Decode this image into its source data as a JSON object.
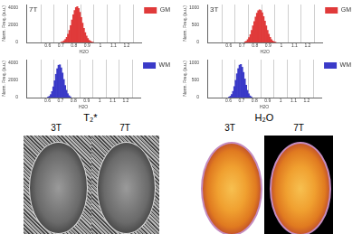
{
  "chart_data": [
    {
      "type": "histogram",
      "title": "7T",
      "x_label": "H2O",
      "y_label": "Norm. Freq. (a.u.)",
      "bins": [
        0.7,
        0.71,
        0.72,
        0.73,
        0.74,
        0.75,
        0.76,
        0.77,
        0.78,
        0.79,
        0.8,
        0.81,
        0.82,
        0.83,
        0.84,
        0.85,
        0.86,
        0.87,
        0.88,
        0.89,
        0.9,
        0.91,
        0.92,
        0.93,
        0.94,
        0.95
      ],
      "series": [
        {
          "name": "GM",
          "color": "#e03a3a",
          "values": [
            50,
            100,
            200,
            350,
            600,
            950,
            1400,
            1950,
            2600,
            3200,
            3700,
            4050,
            4150,
            3950,
            3500,
            2900,
            2250,
            1650,
            1150,
            750,
            450,
            260,
            140,
            70,
            30
          ]
        }
      ],
      "xlim": [
        0.5,
        1.25
      ],
      "xticks": [
        0.6,
        0.7,
        0.8,
        0.9,
        1,
        1.1,
        1.2
      ],
      "ylim": [
        0,
        4400
      ],
      "yticks": [
        0,
        2000,
        4000
      ],
      "grid": true,
      "legend": "upper right"
    },
    {
      "type": "histogram",
      "x_label": "H2O",
      "y_label": "Norm. Freq. (a.u.)",
      "bins": [
        0.6,
        0.61,
        0.62,
        0.63,
        0.64,
        0.65,
        0.66,
        0.67,
        0.68,
        0.69,
        0.7,
        0.71,
        0.72,
        0.73,
        0.74,
        0.75,
        0.76,
        0.77,
        0.78
      ],
      "series": [
        {
          "name": "WM",
          "color": "#3a3ac8",
          "values": [
            60,
            150,
            350,
            700,
            1250,
            1950,
            2700,
            3350,
            3750,
            3800,
            3450,
            2850,
            2100,
            1400,
            850,
            450,
            220,
            90
          ]
        }
      ],
      "xlim": [
        0.5,
        1.25
      ],
      "xticks": [
        0.6,
        0.7,
        0.8,
        0.9,
        1,
        1.1,
        1.2
      ],
      "ylim": [
        0,
        4400
      ],
      "yticks": [
        0,
        2000,
        4000
      ],
      "grid": true,
      "legend": "upper right"
    },
    {
      "type": "histogram",
      "title": "3T",
      "x_label": "H2O",
      "y_label": "Norm. Freq. (a.u.)",
      "bins": [
        0.72,
        0.73,
        0.74,
        0.75,
        0.76,
        0.77,
        0.78,
        0.79,
        0.8,
        0.81,
        0.82,
        0.83,
        0.84,
        0.85,
        0.86,
        0.87,
        0.88,
        0.89,
        0.9,
        0.91,
        0.92,
        0.93,
        0.94,
        0.95,
        0.96
      ],
      "series": [
        {
          "name": "GM",
          "color": "#e03a3a",
          "values": [
            20,
            40,
            80,
            140,
            230,
            350,
            480,
            610,
            740,
            850,
            920,
            950,
            930,
            860,
            750,
            620,
            480,
            350,
            240,
            150,
            85,
            45,
            20,
            10
          ]
        }
      ],
      "xlim": [
        0.5,
        1.25
      ],
      "xticks": [
        0.6,
        0.7,
        0.8,
        0.9,
        1,
        1.1,
        1.2
      ],
      "ylim": [
        0,
        1100
      ],
      "yticks": [
        0,
        500,
        1000
      ],
      "grid": true,
      "legend": "upper right"
    },
    {
      "type": "histogram",
      "x_label": "H2O",
      "y_label": "Norm. Freq. (a.u.)",
      "bins": [
        0.6,
        0.61,
        0.62,
        0.63,
        0.64,
        0.65,
        0.66,
        0.67,
        0.68,
        0.69,
        0.7,
        0.71,
        0.72,
        0.73,
        0.74,
        0.75,
        0.76,
        0.77,
        0.78
      ],
      "series": [
        {
          "name": "WM",
          "color": "#3a3ac8",
          "values": [
            15,
            40,
            90,
            180,
            320,
            500,
            690,
            840,
            940,
            960,
            880,
            730,
            540,
            360,
            210,
            110,
            50,
            20
          ]
        }
      ],
      "xlim": [
        0.5,
        1.25
      ],
      "xticks": [
        0.6,
        0.7,
        0.8,
        0.9,
        1,
        1.1,
        1.2
      ],
      "ylim": [
        0,
        1100
      ],
      "yticks": [
        0,
        500,
        1000
      ],
      "grid": true,
      "legend": "upper right"
    }
  ],
  "images": [
    {
      "title": "T₂*",
      "labels": [
        "3T",
        "7T"
      ],
      "style": "gray"
    },
    {
      "title": "H₂O",
      "labels": [
        "3T",
        "7T"
      ],
      "style": "color"
    }
  ]
}
